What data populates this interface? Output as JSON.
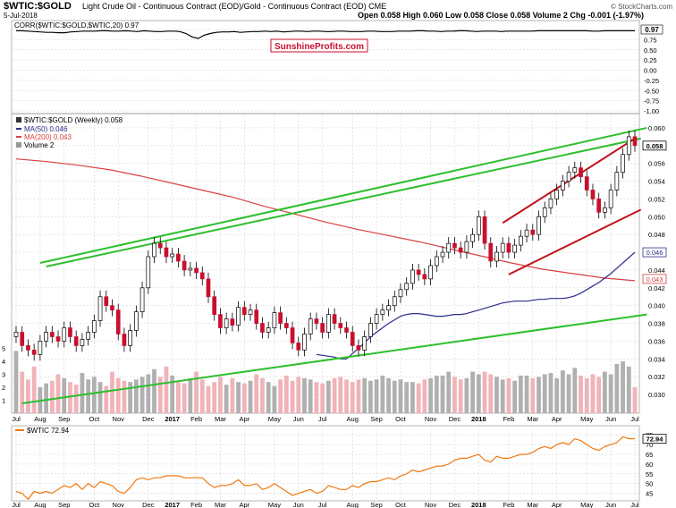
{
  "header": {
    "symbol": "$WTIC:$GOLD",
    "description": "Light Crude Oil - Continuous Contract (EOD)/Gold - Continuous Contract (EOD) CME",
    "date": "5-Jul-2018",
    "ohlc_text": "Open 0.058  High 0.060  Low 0.058  Close 0.058  Volume 2  Chg -0.001 (-1.97%)",
    "credit": "© StockCharts.com"
  },
  "watermark": "SunshineProfits.com",
  "colors": {
    "up": "#ffffff",
    "down": "#c8102e",
    "candle_outline": "#000000",
    "ma50": "#2b2b8c",
    "ma200": "#d94040",
    "trend_green": "#2dbf2d",
    "channel_red": "#c0141c",
    "wtic_line": "#f07810",
    "corr_line": "#000000",
    "volume_up": "#b0b0b0",
    "volume_down": "#f0b3b8",
    "grid": "#cccccc"
  },
  "chart_data": [
    {
      "type": "line",
      "title": "CORR($WTIC:$GOLD,$WTIC,20) 0.97",
      "legend": "CORR($WTIC:$GOLD,$WTIC,20)",
      "last_value": "0.97",
      "ylim": [
        -1.0,
        1.0
      ],
      "y_ticks": [
        "1.00",
        "0.75",
        "0.50",
        "0.25",
        "0.00",
        "-0.25",
        "-0.50",
        "-0.75",
        "-1.00"
      ],
      "series": [
        {
          "name": "CORR($WTIC:$GOLD,$WTIC,20)",
          "values": [
            0.97,
            0.97,
            0.96,
            0.95,
            0.94,
            0.93,
            0.93,
            0.92,
            0.92,
            0.94,
            0.95,
            0.96,
            0.96,
            0.96,
            0.97,
            0.97,
            0.96,
            0.96,
            0.97,
            0.96,
            0.95,
            0.97,
            0.96,
            0.95,
            0.95,
            0.96,
            0.96,
            0.95,
            0.9,
            0.82,
            0.78,
            0.86,
            0.9,
            0.93,
            0.94,
            0.94,
            0.95,
            0.93,
            0.94,
            0.95,
            0.95,
            0.96,
            0.95,
            0.96,
            0.94,
            0.95,
            0.96,
            0.96,
            0.95,
            0.96,
            0.96,
            0.95,
            0.95,
            0.96,
            0.96,
            0.95,
            0.95,
            0.95,
            0.96,
            0.96,
            0.95,
            0.95,
            0.95,
            0.96,
            0.96,
            0.96,
            0.97,
            0.97,
            0.96,
            0.96,
            0.95,
            0.96,
            0.96,
            0.97,
            0.97,
            0.96,
            0.95,
            0.96,
            0.96,
            0.96,
            0.95,
            0.96,
            0.96,
            0.96,
            0.96,
            0.96,
            0.97,
            0.97,
            0.97,
            0.97,
            0.97,
            0.97,
            0.97,
            0.97,
            0.97,
            0.96,
            0.96,
            0.97,
            0.97,
            0.97,
            0.97,
            0.97,
            0.97
          ]
        }
      ]
    },
    {
      "type": "candlestick",
      "title": "$WTIC:$GOLD (Weekly) 0.058",
      "legend": [
        "$WTIC:$GOLD (Weekly) 0.058",
        "MA(50) 0.046",
        "MA(200) 0.043",
        "Volume 2"
      ],
      "ylim": [
        0.029,
        0.061
      ],
      "y_ticks": [
        "0.060",
        "0.058",
        "0.056",
        "0.054",
        "0.052",
        "0.050",
        "0.048",
        "0.046",
        "0.044",
        "0.042",
        "0.040",
        "0.038",
        "0.036",
        "0.034",
        "0.032",
        "0.030"
      ],
      "price_badges": [
        {
          "value": "0.058",
          "kind": "close"
        },
        {
          "value": "0.046",
          "kind": "ma50"
        },
        {
          "value": "0.043",
          "kind": "ma200"
        }
      ],
      "volume_ticks": [
        "5",
        "4",
        "3",
        "2",
        "1"
      ],
      "x_labels": [
        "Jul",
        "Aug",
        "Sep",
        "Oct",
        "Nov",
        "Dec",
        "2017",
        "Feb",
        "Mar",
        "Apr",
        "May",
        "Jun",
        "Jul",
        "Aug",
        "Sep",
        "Oct",
        "Nov",
        "Dec",
        "2018",
        "Feb",
        "Mar",
        "Apr",
        "May",
        "Jun",
        "Jul"
      ],
      "x_label_weeks": [
        0,
        4,
        8,
        13,
        17,
        22,
        26,
        30,
        34,
        38,
        43,
        47,
        51,
        56,
        60,
        64,
        69,
        73,
        77,
        82,
        86,
        90,
        95,
        99,
        103
      ],
      "closes": [
        0.037,
        0.0355,
        0.035,
        0.0345,
        0.036,
        0.037,
        0.0365,
        0.036,
        0.0375,
        0.0365,
        0.0355,
        0.0362,
        0.037,
        0.0383,
        0.041,
        0.04,
        0.0395,
        0.0368,
        0.0355,
        0.0372,
        0.0393,
        0.042,
        0.0455,
        0.047,
        0.0465,
        0.0455,
        0.0458,
        0.045,
        0.044,
        0.0442,
        0.0437,
        0.043,
        0.041,
        0.039,
        0.0375,
        0.0385,
        0.0378,
        0.0398,
        0.039,
        0.0395,
        0.038,
        0.037,
        0.0375,
        0.0392,
        0.038,
        0.0375,
        0.0358,
        0.035,
        0.0368,
        0.0385,
        0.038,
        0.037,
        0.039,
        0.038,
        0.0375,
        0.037,
        0.0355,
        0.035,
        0.0365,
        0.038,
        0.039,
        0.0395,
        0.04,
        0.041,
        0.0418,
        0.0425,
        0.044,
        0.0435,
        0.043,
        0.0445,
        0.0455,
        0.046,
        0.047,
        0.0465,
        0.046,
        0.0472,
        0.048,
        0.05,
        0.047,
        0.045,
        0.046,
        0.047,
        0.046,
        0.0468,
        0.0478,
        0.0485,
        0.048,
        0.05,
        0.051,
        0.052,
        0.053,
        0.054,
        0.055,
        0.0555,
        0.0545,
        0.053,
        0.052,
        0.0505,
        0.051,
        0.053,
        0.055,
        0.057,
        0.059,
        0.058
      ],
      "volumes": [
        4.8,
        3.2,
        2.6,
        3.6,
        2.0,
        2.3,
        2.5,
        3.0,
        2.7,
        2.4,
        2.2,
        3.1,
        2.6,
        2.8,
        2.4,
        2.1,
        3.2,
        2.7,
        2.5,
        2.4,
        2.6,
        2.8,
        3.0,
        3.4,
        2.8,
        3.6,
        2.9,
        2.4,
        2.3,
        2.7,
        3.2,
        2.6,
        2.1,
        2.4,
        2.8,
        2.2,
        2.7,
        2.4,
        2.3,
        2.5,
        3.0,
        2.7,
        2.4,
        2.1,
        2.6,
        2.9,
        2.5,
        2.8,
        2.7,
        2.6,
        2.4,
        2.3,
        2.5,
        2.7,
        2.8,
        2.6,
        2.4,
        2.6,
        2.7,
        2.5,
        2.6,
        2.9,
        2.7,
        2.5,
        2.6,
        2.4,
        2.4,
        2.3,
        2.6,
        2.7,
        2.9,
        2.9,
        3.2,
        2.8,
        2.6,
        2.7,
        3.2,
        3.0,
        3.2,
        3.0,
        2.8,
        2.6,
        2.7,
        2.5,
        2.9,
        2.9,
        2.7,
        2.8,
        3.0,
        3.1,
        2.7,
        3.3,
        3.0,
        3.5,
        2.9,
        2.7,
        3.0,
        2.8,
        3.2,
        3.0,
        3.8,
        4.0,
        3.6,
        2.0
      ],
      "ma50_values": [
        0.0345,
        0.0344,
        0.0343,
        0.0342,
        0.034,
        0.034,
        0.0346,
        0.0352,
        0.0358,
        0.0365,
        0.037,
        0.0375,
        0.038,
        0.0384,
        0.0388,
        0.039,
        0.0391,
        0.0391,
        0.039,
        0.0389,
        0.0388,
        0.0388,
        0.0389,
        0.039,
        0.039,
        0.0391,
        0.0393,
        0.0395,
        0.0397,
        0.0399,
        0.0401,
        0.0403,
        0.0404,
        0.0405,
        0.0405,
        0.0405,
        0.0406,
        0.0407,
        0.0407,
        0.0408,
        0.0408,
        0.0408,
        0.0409,
        0.0411,
        0.0414,
        0.0418,
        0.0422,
        0.0426,
        0.0431,
        0.0436,
        0.0442,
        0.0448,
        0.0454,
        0.046
      ],
      "ma200_values": [
        0.0565,
        0.0562,
        0.0558,
        0.0553,
        0.0546,
        0.0538,
        0.053,
        0.0522,
        0.0512,
        0.0503,
        0.0494,
        0.0486,
        0.0479,
        0.0472,
        0.0464,
        0.0456,
        0.0448,
        0.0441,
        0.0436,
        0.0431,
        0.0428
      ],
      "annotations": [
        {
          "type": "trendline",
          "color": "green",
          "from": [
            4,
            0.0448
          ],
          "to": [
            105,
            0.06
          ]
        },
        {
          "type": "trendline",
          "color": "green",
          "from": [
            5,
            0.0444
          ],
          "to": [
            104,
            0.0588
          ]
        },
        {
          "type": "trendline",
          "color": "green",
          "from": [
            1,
            0.029
          ],
          "to": [
            105,
            0.039
          ]
        },
        {
          "type": "channel",
          "color": "red",
          "from": [
            81,
            0.0493
          ],
          "to": [
            103,
            0.0588
          ]
        },
        {
          "type": "channel",
          "color": "red",
          "from": [
            82,
            0.0435
          ],
          "to": [
            104,
            0.0508
          ]
        }
      ]
    },
    {
      "type": "line",
      "title": "$WTIC 72.94",
      "legend": "$WTIC",
      "last_value": "72.94",
      "ylim": [
        43,
        76
      ],
      "y_ticks": [
        "75",
        "70",
        "65",
        "60",
        "55",
        "50",
        "45"
      ],
      "badge": "72.94",
      "series": [
        {
          "name": "$WTIC",
          "values": [
            46,
            45,
            42,
            46,
            45,
            46,
            45,
            47,
            49,
            48,
            50,
            47,
            50,
            48,
            51,
            50,
            49,
            46,
            45,
            48,
            52,
            53,
            52,
            53,
            53,
            54,
            54,
            54,
            53,
            53,
            53,
            53,
            50,
            48,
            49,
            49,
            50,
            52,
            49,
            49,
            50,
            47,
            48,
            50,
            48,
            46,
            44,
            45,
            46,
            47,
            45,
            46,
            49,
            48,
            47,
            47,
            49,
            48,
            50,
            51,
            51,
            52,
            53,
            52,
            54,
            55,
            57,
            56,
            57,
            58,
            59,
            59,
            60,
            62,
            63,
            63,
            64,
            65,
            62,
            61,
            64,
            63,
            63,
            64,
            65,
            65,
            66,
            68,
            69,
            68,
            70,
            71,
            70,
            73,
            72,
            70,
            68,
            67,
            69,
            70,
            71,
            74,
            73,
            73
          ]
        }
      ]
    }
  ]
}
